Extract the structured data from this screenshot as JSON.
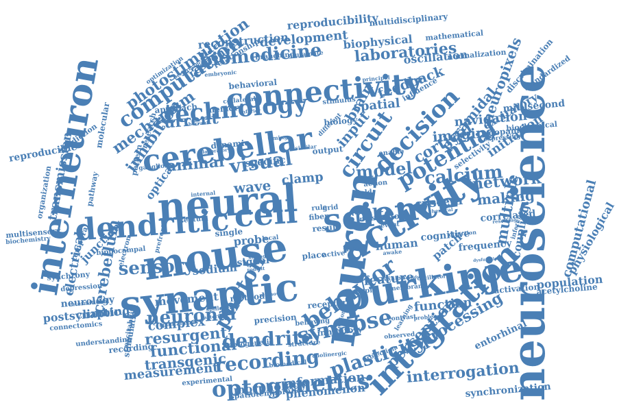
{
  "accent_color": "#4a7fb5",
  "words": [
    {
      "key": "neuroscience",
      "text": "neuroscience"
    },
    {
      "key": "neuron",
      "text": "neuron"
    },
    {
      "key": "activity",
      "text": "activity"
    },
    {
      "key": "purkinje",
      "text": "purkinje"
    },
    {
      "key": "synaptic",
      "text": "synaptic"
    },
    {
      "key": "mouse",
      "text": "mouse"
    },
    {
      "key": "dendritic",
      "text": "dendritic"
    },
    {
      "key": "cell",
      "text": "cell"
    },
    {
      "key": "neural",
      "text": "neural"
    },
    {
      "key": "interneuron",
      "text": "interneuron"
    },
    {
      "key": "integration",
      "text": "integration"
    },
    {
      "key": "cerebellar",
      "text": "cerebellar"
    },
    {
      "key": "science",
      "text": "science"
    },
    {
      "key": "connectivity",
      "text": "connectivity"
    },
    {
      "key": "technology",
      "text": "technology"
    },
    {
      "key": "computation",
      "text": "computation"
    },
    {
      "key": "optogenetics",
      "text": "optogenetics"
    },
    {
      "key": "behavior",
      "text": "behavior"
    },
    {
      "key": "synapse",
      "text": "synapse"
    },
    {
      "key": "circuit",
      "text": "circuit"
    },
    {
      "key": "decision",
      "text": "decision"
    },
    {
      "key": "potential",
      "text": "potential"
    },
    {
      "key": "photon",
      "text": "photon"
    },
    {
      "key": "recording",
      "text": "recording"
    },
    {
      "key": "dendrite",
      "text": "dendrite"
    },
    {
      "key": "plasticity",
      "text": "plasticity"
    },
    {
      "key": "neuronal",
      "text": "neuronal"
    },
    {
      "key": "sensory",
      "text": "sensory"
    },
    {
      "key": "visual",
      "text": "visual"
    },
    {
      "key": "model",
      "text": "model"
    },
    {
      "key": "calcium",
      "text": "calcium"
    },
    {
      "key": "biomedicine",
      "text": "biomedicine"
    },
    {
      "key": "laboratories",
      "text": "laboratories"
    },
    {
      "key": "photostimulation",
      "text": "photostimulation"
    },
    {
      "key": "reconstruction",
      "text": "reconstruction"
    },
    {
      "key": "development",
      "text": "development"
    },
    {
      "key": "biophysical",
      "text": "biophysical"
    },
    {
      "key": "reproducibility",
      "text": "reproducibility"
    },
    {
      "key": "multidisciplinary",
      "text": "multidisciplinary"
    },
    {
      "key": "mathematical",
      "text": "mathematical"
    },
    {
      "key": "neuropixels",
      "text": "neuropixels"
    },
    {
      "key": "pyramidal",
      "text": "pyramidal"
    },
    {
      "key": "feedback",
      "text": "feedback"
    },
    {
      "key": "oscillation",
      "text": "oscillation"
    },
    {
      "key": "normalization",
      "text": "normalization"
    },
    {
      "key": "millisecond",
      "text": "millisecond"
    },
    {
      "key": "standardized",
      "text": "standardized"
    },
    {
      "key": "discrimination",
      "text": "discrimination"
    },
    {
      "key": "excitatory",
      "text": "excitatory"
    },
    {
      "key": "navigation",
      "text": "navigation"
    },
    {
      "key": "imaging",
      "text": "imaging"
    },
    {
      "key": "cortical",
      "text": "cortical"
    },
    {
      "key": "dopamine",
      "text": "dopamine"
    },
    {
      "key": "biochemical",
      "text": "biochemical"
    },
    {
      "key": "expressing",
      "text": "expressing"
    },
    {
      "key": "initiation",
      "text": "initiation"
    },
    {
      "key": "network",
      "text": "network"
    },
    {
      "key": "making",
      "text": "making"
    },
    {
      "key": "spike",
      "text": "spike"
    },
    {
      "key": "system",
      "text": "system"
    },
    {
      "key": "correlated",
      "text": "correlated"
    },
    {
      "key": "multiple",
      "text": "multiple"
    },
    {
      "key": "computational",
      "text": "computational"
    },
    {
      "key": "physiological",
      "text": "physiological"
    },
    {
      "key": "coupling",
      "text": "coupling"
    },
    {
      "key": "frequency",
      "text": "frequency"
    },
    {
      "key": "cognitive",
      "text": "cognitive"
    },
    {
      "key": "human",
      "text": "human"
    },
    {
      "key": "patch",
      "text": "patch"
    },
    {
      "key": "population",
      "text": "population"
    },
    {
      "key": "acetylcholine",
      "text": "acetylcholine"
    },
    {
      "key": "activation",
      "text": "activation"
    },
    {
      "key": "feature",
      "text": "feature"
    },
    {
      "key": "function",
      "text": "function"
    },
    {
      "key": "processing",
      "text": "processing"
    },
    {
      "key": "perception",
      "text": "perception"
    },
    {
      "key": "entorhinal",
      "text": "entorhinal"
    },
    {
      "key": "interrogation",
      "text": "interrogation"
    },
    {
      "key": "synchronization",
      "text": "synchronization"
    },
    {
      "key": "information",
      "text": "information"
    },
    {
      "key": "phenomenon",
      "text": "phenomenon"
    },
    {
      "key": "morphology",
      "text": "morphology"
    },
    {
      "key": "spatiotemporal",
      "text": "spatiotemporal"
    },
    {
      "key": "measurement",
      "text": "measurement"
    },
    {
      "key": "transgenic",
      "text": "transgenic"
    },
    {
      "key": "functional",
      "text": "functional"
    },
    {
      "key": "resurgent",
      "text": "resurgent"
    },
    {
      "key": "complex",
      "text": "complex"
    },
    {
      "key": "movement",
      "text": "movement"
    },
    {
      "key": "method",
      "text": "method"
    },
    {
      "key": "sodium",
      "text": "sodium"
    },
    {
      "key": "signal",
      "text": "signal"
    },
    {
      "key": "probe",
      "text": "probe"
    },
    {
      "key": "single",
      "text": "single"
    },
    {
      "key": "wave",
      "text": "wave"
    },
    {
      "key": "specific",
      "text": "specific"
    },
    {
      "key": "animal",
      "text": "animal"
    },
    {
      "key": "current",
      "text": "current"
    },
    {
      "key": "approach",
      "text": "approach"
    },
    {
      "key": "memory",
      "text": "memory"
    },
    {
      "key": "mechanism",
      "text": "mechanism"
    },
    {
      "key": "inhibition",
      "text": "inhibition"
    },
    {
      "key": "optical",
      "text": "optical"
    },
    {
      "key": "response",
      "text": "response"
    },
    {
      "key": "behavioral",
      "text": "behavioral"
    },
    {
      "key": "relationship",
      "text": "relationship"
    },
    {
      "key": "cerebellum",
      "text": "cerebellum"
    },
    {
      "key": "electrical",
      "text": "electrical"
    },
    {
      "key": "climbing",
      "text": "climbing"
    },
    {
      "key": "neurology",
      "text": "neurology"
    },
    {
      "key": "postsynaptic",
      "text": "postsynaptic"
    },
    {
      "key": "junction",
      "text": "junction"
    },
    {
      "key": "transmission",
      "text": "transmission"
    },
    {
      "key": "reproducible",
      "text": "reproducible"
    },
    {
      "key": "prediction",
      "text": "prediction"
    },
    {
      "key": "multisensory",
      "text": "multisensory"
    },
    {
      "key": "biochemistry",
      "text": "biochemistry"
    },
    {
      "key": "organization",
      "text": "organization"
    },
    {
      "key": "synchrony",
      "text": "synchrony"
    },
    {
      "key": "depression",
      "text": "depression"
    },
    {
      "key": "connectomics",
      "text": "connectomics"
    },
    {
      "key": "understanding",
      "text": "understanding"
    },
    {
      "key": "stimulation",
      "text": "stimulation"
    },
    {
      "key": "recording2",
      "text": "recording"
    },
    {
      "key": "experimental",
      "text": "experimental"
    },
    {
      "key": "optogenetic",
      "text": "optogenetic"
    },
    {
      "key": "precision",
      "text": "precision"
    },
    {
      "key": "behaving",
      "text": "behaving"
    },
    {
      "key": "receptor",
      "text": "receptor"
    },
    {
      "key": "inhibitory",
      "text": "inhibitory"
    },
    {
      "key": "place",
      "text": "place"
    },
    {
      "key": "active",
      "text": "active"
    },
    {
      "key": "theory",
      "text": "theory"
    },
    {
      "key": "motor",
      "text": "motor"
    },
    {
      "key": "clamp",
      "text": "clamp"
    },
    {
      "key": "input",
      "text": "input"
    },
    {
      "key": "brain",
      "text": "brain"
    },
    {
      "key": "spatial",
      "text": "spatial"
    },
    {
      "key": "output",
      "text": "output"
    },
    {
      "key": "biology",
      "text": "biology"
    },
    {
      "key": "stimulus",
      "text": "stimulus"
    },
    {
      "key": "result",
      "text": "result"
    },
    {
      "key": "fiber",
      "text": "fiber"
    },
    {
      "key": "grid",
      "text": "grid"
    },
    {
      "key": "rule",
      "text": "rule"
    },
    {
      "key": "simple",
      "text": "simple"
    },
    {
      "key": "noise",
      "text": "noise"
    },
    {
      "key": "event",
      "text": "event"
    },
    {
      "key": "field",
      "text": "field"
    },
    {
      "key": "action",
      "text": "action"
    },
    {
      "key": "enable",
      "text": "enable"
    },
    {
      "key": "dynamic",
      "text": "dynamic"
    },
    {
      "key": "research",
      "text": "research"
    },
    {
      "key": "pattern",
      "text": "pattern"
    },
    {
      "key": "ganglion",
      "text": "ganglion"
    },
    {
      "key": "septum",
      "text": "septum"
    },
    {
      "key": "electron",
      "text": "electron"
    },
    {
      "key": "prefrontal",
      "text": "prefrontal"
    },
    {
      "key": "temporal",
      "text": "temporal"
    },
    {
      "key": "hippocampal",
      "text": "hippocampal"
    },
    {
      "key": "excitability",
      "text": "excitability"
    },
    {
      "key": "international",
      "text": "international"
    },
    {
      "key": "branching",
      "text": "branching"
    },
    {
      "key": "glutamate",
      "text": "glutamate"
    },
    {
      "key": "optimization",
      "text": "optimization"
    },
    {
      "key": "performance",
      "text": "performance"
    },
    {
      "key": "collateral",
      "text": "collateral"
    },
    {
      "key": "embryonic",
      "text": "embryonic"
    },
    {
      "key": "principal",
      "text": "principal"
    },
    {
      "key": "influence",
      "text": "influence"
    },
    {
      "key": "selectivity",
      "text": "selectivity"
    },
    {
      "key": "membrane",
      "text": "membrane"
    },
    {
      "key": "observed",
      "text": "observed"
    },
    {
      "key": "cholinergic",
      "text": "cholinergic"
    },
    {
      "key": "projection",
      "text": "projection"
    },
    {
      "key": "contrast",
      "text": "contrast"
    },
    {
      "key": "problem",
      "text": "problem"
    },
    {
      "key": "structure",
      "text": "structure"
    },
    {
      "key": "biomedical",
      "text": "biomedical"
    },
    {
      "key": "unknown",
      "text": "unknown"
    },
    {
      "key": "awake",
      "text": "awake"
    },
    {
      "key": "local",
      "text": "local"
    },
    {
      "key": "bacterial",
      "text": "bacterial"
    },
    {
      "key": "spillover",
      "text": "spillover"
    },
    {
      "key": "spontaneous",
      "text": "spontaneous"
    },
    {
      "key": "molecular",
      "text": "molecular"
    },
    {
      "key": "pathway",
      "text": "pathway"
    },
    {
      "key": "different",
      "text": "different"
    },
    {
      "key": "timing",
      "text": "timing"
    },
    {
      "key": "similar",
      "text": "similar"
    },
    {
      "key": "inferior",
      "text": "inferior"
    },
    {
      "key": "aberrant",
      "text": "aberrant"
    },
    {
      "key": "laboratory",
      "text": "laboratory"
    },
    {
      "key": "strong",
      "text": "strong"
    },
    {
      "key": "rodent",
      "text": "rodent"
    },
    {
      "key": "internal",
      "text": "internal"
    },
    {
      "key": "oscillator",
      "text": "oscillator"
    },
    {
      "key": "density",
      "text": "density"
    },
    {
      "key": "direction",
      "text": "direction"
    },
    {
      "key": "resetting",
      "text": "resetting"
    },
    {
      "key": "dysfunction",
      "text": "dysfunction"
    },
    {
      "key": "chemical",
      "text": "chemical"
    },
    {
      "key": "inference",
      "text": "inference"
    },
    {
      "key": "learning",
      "text": "learning"
    },
    {
      "key": "exhibit",
      "text": "exhibit"
    },
    {
      "key": "individual",
      "text": "individual"
    },
    {
      "key": "detection",
      "text": "detection"
    }
  ]
}
